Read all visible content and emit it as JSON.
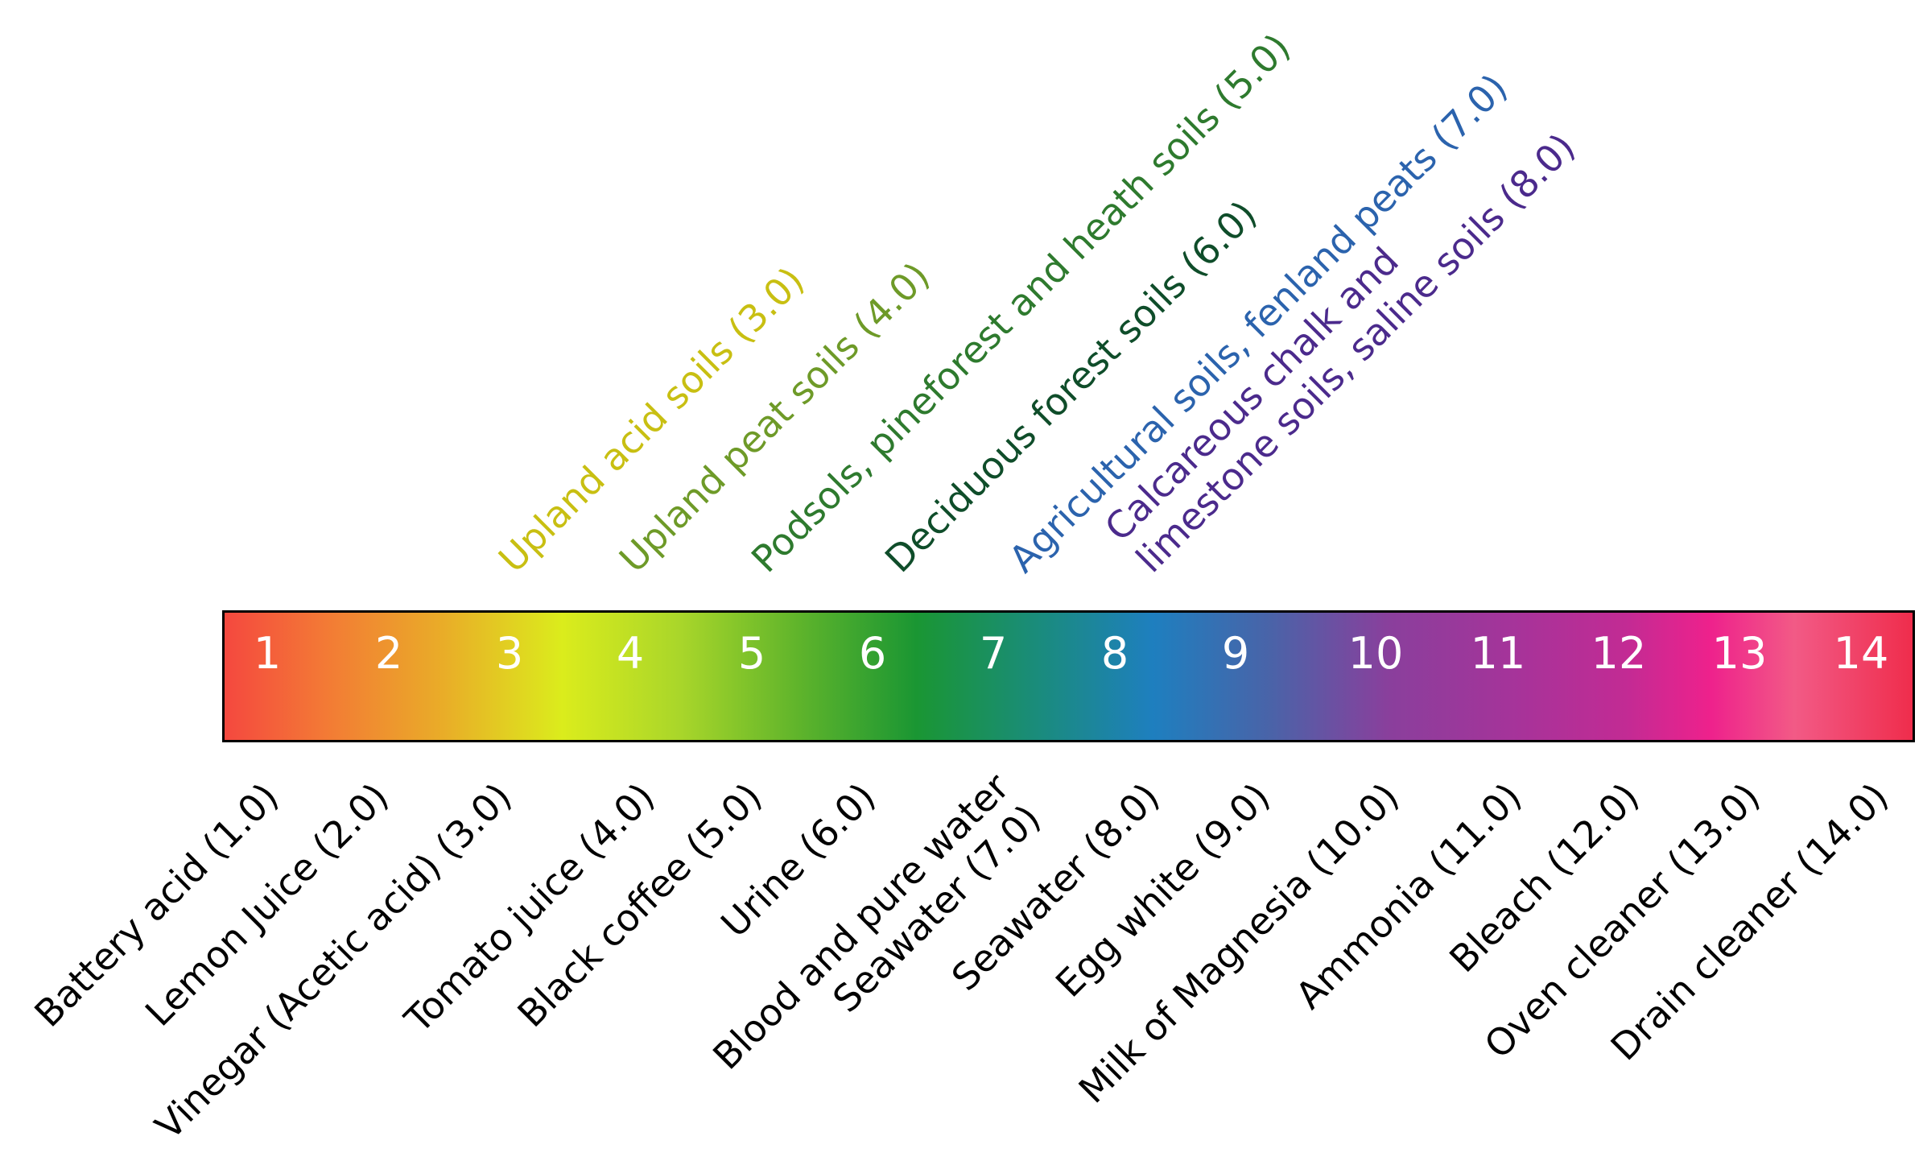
{
  "scale": {
    "numbers": [
      "1",
      "2",
      "3",
      "4",
      "5",
      "6",
      "7",
      "8",
      "9",
      "10",
      "11",
      "12",
      "13",
      "14"
    ]
  },
  "bottom_labels": [
    {
      "lines": [
        "Battery acid (1.0)"
      ]
    },
    {
      "lines": [
        "Lemon Juice (2.0)"
      ]
    },
    {
      "lines": [
        "Vinegar (Acetic acid) (3.0)"
      ]
    },
    {
      "lines": [
        "Tomato juice (4.0)"
      ]
    },
    {
      "lines": [
        "Black coffee (5.0)"
      ]
    },
    {
      "lines": [
        "Urine (6.0)"
      ]
    },
    {
      "lines": [
        "Blood and pure water",
        "Seawater (7.0)"
      ]
    },
    {
      "lines": [
        "Seawater (8.0)"
      ]
    },
    {
      "lines": [
        "Egg white (9.0)"
      ]
    },
    {
      "lines": [
        "Milk of Magnesia (10.0)"
      ]
    },
    {
      "lines": [
        "Ammonia (11.0)"
      ]
    },
    {
      "lines": [
        "Bleach (12.0)"
      ]
    },
    {
      "lines": [
        "Oven cleaner (13.0)"
      ]
    },
    {
      "lines": [
        "Drain cleaner (14.0)"
      ]
    }
  ],
  "top_labels": [
    {
      "lines": [
        "Upland acid soils (3.0)"
      ],
      "color": "#c8bf12"
    },
    {
      "lines": [
        "Upland peat soils (4.0)"
      ],
      "color": "#6e9a28"
    },
    {
      "lines": [
        "Podsols, pineforest and heath soils (5.0)"
      ],
      "color": "#2e7a2e"
    },
    {
      "lines": [
        "Deciduous forest soils (6.0)"
      ],
      "color": "#0f4d2a"
    },
    {
      "lines": [
        "Agricultural soils, fenland peats (7.0)"
      ],
      "color": "#2b63ad"
    },
    {
      "lines": [
        "Calcareous chalk and",
        "limestone soils, saline soils (8.0)"
      ],
      "color": "#4b2a8c"
    }
  ]
}
